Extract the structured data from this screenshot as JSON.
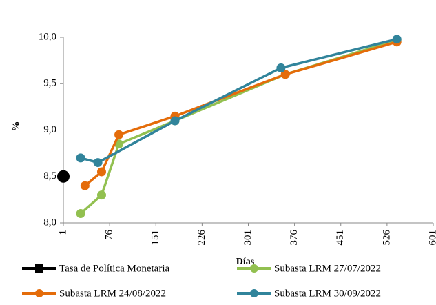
{
  "chart_data": {
    "type": "line",
    "x_label": "Días",
    "y_label": "%",
    "xlim": [
      1,
      601
    ],
    "xticks": [
      1,
      76,
      151,
      226,
      301,
      376,
      451,
      526,
      601
    ],
    "ylim": [
      8.0,
      10.0
    ],
    "yticks": [
      {
        "value": 8.0,
        "label": "8,0"
      },
      {
        "value": 8.5,
        "label": "8,5"
      },
      {
        "value": 9.0,
        "label": "9,0"
      },
      {
        "value": 9.5,
        "label": "9,5"
      },
      {
        "value": 10.0,
        "label": "10,0"
      }
    ],
    "series": [
      {
        "name": "Tasa de Política Monetaria",
        "color": "#000000",
        "x": [
          1
        ],
        "values": [
          8.5
        ]
      },
      {
        "name": "Subasta LRM 27/07/2022",
        "color": "#92c050",
        "x": [
          29,
          63,
          91,
          182,
          361,
          542
        ],
        "values": [
          8.1,
          8.3,
          8.85,
          9.1,
          9.6,
          9.97
        ]
      },
      {
        "name": "Subasta LRM 24/08/2022",
        "color": "#e46c0a",
        "x": [
          36,
          63,
          91,
          182,
          361,
          542
        ],
        "values": [
          8.4,
          8.55,
          8.95,
          9.15,
          9.6,
          9.95
        ]
      },
      {
        "name": "Subasta LRM 30/09/2022",
        "color": "#31849b",
        "x": [
          29,
          57,
          182,
          354,
          542
        ],
        "values": [
          8.7,
          8.65,
          9.1,
          9.67,
          9.98
        ]
      }
    ]
  }
}
